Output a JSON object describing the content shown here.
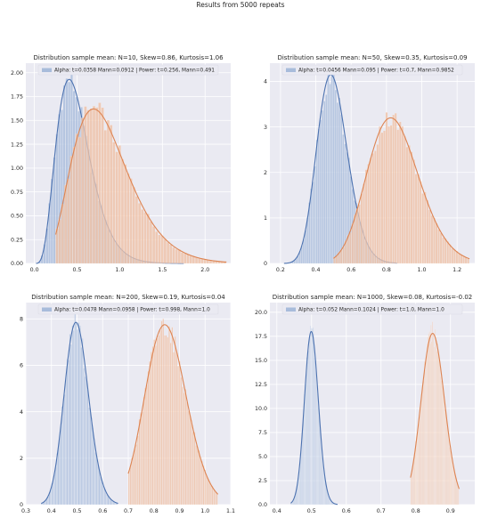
{
  "suptitle": "Results from 5000 repeats",
  "colors": {
    "panel_bg": "#eaeaf2",
    "grid": "#ffffff",
    "series_a": "#4c72b0",
    "series_a_fill": "#a8bcdb",
    "series_b": "#dd8452",
    "series_b_fill": "#efc0a5",
    "legend_bg": "#eaeaf2"
  },
  "chart_data": [
    {
      "type": "histogram",
      "title": "Distribution sample mean: N=10, Skew=0.86, Kurtosis=1.06",
      "legend": "Alpha: t=0.0358 Mann=0.0912 | Power: t=0.256, Mann=0.491",
      "legend_position": "top-center",
      "xlim": [
        -0.1,
        2.3
      ],
      "ylim": [
        0,
        2.1
      ],
      "xticks": [
        "0.0",
        "0.5",
        "1.0",
        "1.5",
        "2.0"
      ],
      "xtick_values": [
        0.0,
        0.5,
        1.0,
        1.5,
        2.0
      ],
      "yticks": [
        "0.00",
        "0.25",
        "0.50",
        "0.75",
        "1.00",
        "1.25",
        "1.50",
        "1.75",
        "2.00"
      ],
      "ytick_values": [
        0.0,
        0.25,
        0.5,
        0.75,
        1.0,
        1.25,
        1.5,
        1.75,
        2.0
      ],
      "series": [
        {
          "color_key": "series_a",
          "dist": "gamma",
          "shape": 5.41,
          "mean": 0.5,
          "peak": 1.93,
          "min": 0.02,
          "max": 1.75,
          "bins": 60
        },
        {
          "color_key": "series_b",
          "dist": "gamma",
          "shape": 5.41,
          "mean": 0.85,
          "peak": 1.62,
          "min": 0.25,
          "max": 2.25,
          "bins": 60
        }
      ]
    },
    {
      "type": "histogram",
      "title": "Distribution sample mean: N=50, Skew=0.35, Kurtosis=0.09",
      "legend": "Alpha: t=0.0456 Mann=0.095 | Power: t=0.7, Mann=0.9852",
      "legend_position": "top-center",
      "xlim": [
        0.14,
        1.3
      ],
      "ylim": [
        0,
        4.4
      ],
      "xticks": [
        "0.2",
        "0.4",
        "0.6",
        "0.8",
        "1.0",
        "1.2"
      ],
      "xtick_values": [
        0.2,
        0.4,
        0.6,
        0.8,
        1.0,
        1.2
      ],
      "yticks": [
        "0",
        "1",
        "2",
        "3",
        "4"
      ],
      "ytick_values": [
        0,
        1,
        2,
        3,
        4
      ],
      "series": [
        {
          "color_key": "series_a",
          "dist": "gamma",
          "shape": 32.6,
          "mean": 0.5,
          "peak": 4.15,
          "min": 0.22,
          "max": 0.86,
          "bins": 60
        },
        {
          "color_key": "series_b",
          "dist": "gamma",
          "shape": 32.6,
          "mean": 0.85,
          "peak": 3.2,
          "min": 0.5,
          "max": 1.27,
          "bins": 60
        }
      ]
    },
    {
      "type": "histogram",
      "title": "Distribution sample mean: N=200, Skew=0.19, Kurtosis=0.04",
      "legend": "Alpha: t=0.0478 Mann=0.0958 | Power: t=0.998, Mann=1.0",
      "legend_position": "top-center",
      "xlim": [
        0.3,
        1.1
      ],
      "ylim": [
        0,
        8.7
      ],
      "xticks": [
        "0.3",
        "0.4",
        "0.5",
        "0.6",
        "0.7",
        "0.8",
        "0.9",
        "1.0",
        "1.1"
      ],
      "xtick_values": [
        0.3,
        0.4,
        0.5,
        0.6,
        0.7,
        0.8,
        0.9,
        1.0,
        1.1
      ],
      "yticks": [
        "0",
        "2",
        "4",
        "6",
        "8"
      ],
      "ytick_values": [
        0,
        2,
        4,
        6,
        8
      ],
      "series": [
        {
          "color_key": "series_a",
          "dist": "gamma",
          "shape": 110,
          "mean": 0.5,
          "peak": 7.85,
          "min": 0.36,
          "max": 0.66,
          "bins": 60
        },
        {
          "color_key": "series_b",
          "dist": "gamma",
          "shape": 110,
          "mean": 0.85,
          "peak": 7.75,
          "min": 0.7,
          "max": 1.05,
          "bins": 60
        }
      ]
    },
    {
      "type": "histogram",
      "title": "Distribution sample mean: N=1000, Skew=0.08, Kurtosis=-0.02",
      "legend": "Alpha: t=0.052 Mann=0.1024 | Power: t=1.0, Mann=1.0",
      "legend_position": "top-center",
      "xlim": [
        0.38,
        0.97
      ],
      "ylim": [
        0,
        21
      ],
      "xticks": [
        "0.4",
        "0.5",
        "0.6",
        "0.7",
        "0.8",
        "0.9"
      ],
      "xtick_values": [
        0.4,
        0.5,
        0.6,
        0.7,
        0.8,
        0.9
      ],
      "yticks": [
        "0.0",
        "2.5",
        "5.0",
        "7.5",
        "10.0",
        "12.5",
        "15.0",
        "17.5",
        "20.0"
      ],
      "ytick_values": [
        0.0,
        2.5,
        5.0,
        7.5,
        10.0,
        12.5,
        15.0,
        17.5,
        20.0
      ],
      "series": [
        {
          "color_key": "series_a",
          "dist": "gamma",
          "shape": 625,
          "mean": 0.5,
          "peak": 18.0,
          "min": 0.44,
          "max": 0.575,
          "bins": 60
        },
        {
          "color_key": "series_b",
          "dist": "gamma",
          "shape": 625,
          "mean": 0.85,
          "peak": 17.8,
          "min": 0.785,
          "max": 0.925,
          "bins": 60
        }
      ]
    }
  ]
}
